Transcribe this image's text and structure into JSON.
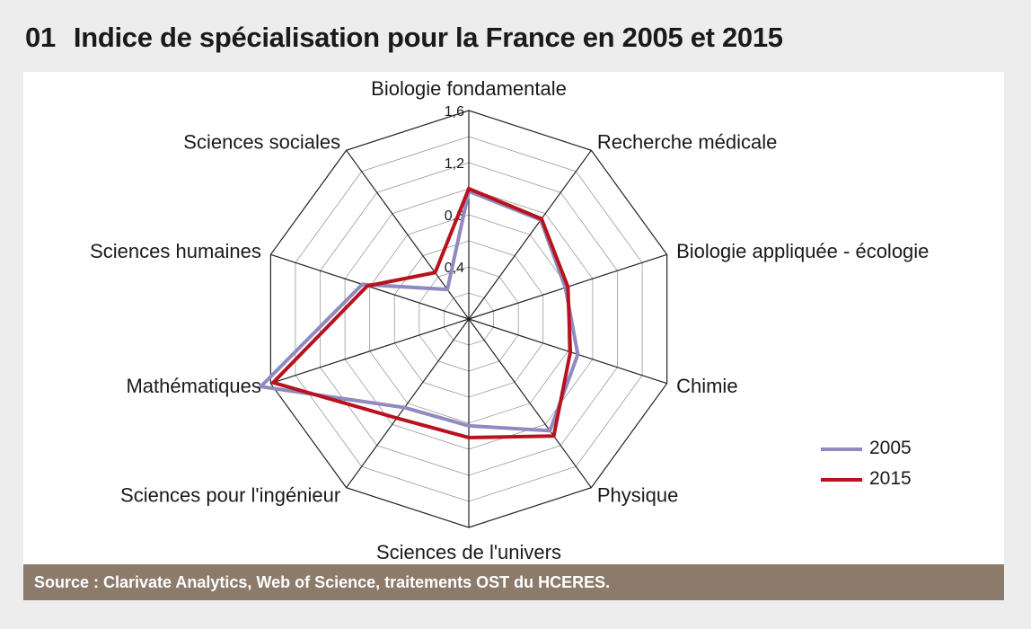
{
  "title": {
    "number": "01",
    "text": "Indice de spécialisation pour la France en 2005 et 2015"
  },
  "source": "Source : Clarivate Analytics, Web of Science, traitements OST du HCERES.",
  "chart_data": {
    "type": "radar",
    "axes": [
      "Biologie fondamentale",
      "Recherche médicale",
      "Biologie appliquée - écologie",
      "Chimie",
      "Physique",
      "Sciences de l'univers",
      "Sciences pour l'ingénieur",
      "Mathématiques",
      "Sciences humaines",
      "Sciences sociales"
    ],
    "rlim": [
      0,
      1.6
    ],
    "ticks": [
      "0,4",
      "0,8",
      "1,2",
      "1,6"
    ],
    "tick_values": [
      0.4,
      0.8,
      1.2,
      1.6
    ],
    "grid_step": 0.2,
    "series": [
      {
        "name": "2005",
        "color": "#8f8abf",
        "values": [
          0.98,
          0.94,
          0.78,
          0.88,
          1.06,
          0.82,
          0.84,
          1.68,
          0.86,
          0.28
        ]
      },
      {
        "name": "2015",
        "color": "#b8121e",
        "values": [
          1.0,
          0.95,
          0.8,
          0.82,
          1.11,
          0.91,
          0.94,
          1.58,
          0.82,
          0.44
        ]
      }
    ],
    "legend_position": "right"
  }
}
